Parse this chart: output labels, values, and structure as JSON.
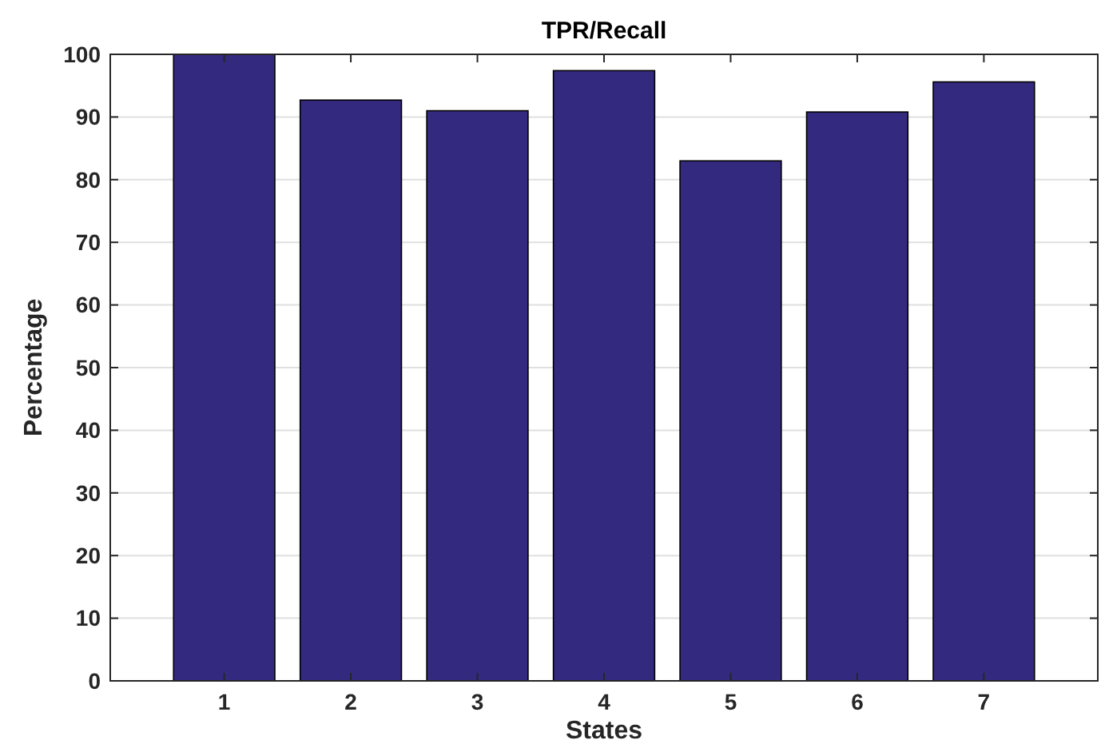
{
  "chart_data": {
    "type": "bar",
    "title": "TPR/Recall",
    "xlabel": "States",
    "ylabel": "Percentage",
    "categories": [
      "1",
      "2",
      "3",
      "4",
      "5",
      "6",
      "7"
    ],
    "values": [
      100,
      92.7,
      91,
      97.4,
      83,
      90.8,
      95.6
    ],
    "color": "#33297f",
    "ylim": [
      0,
      100
    ],
    "yticks": [
      0,
      10,
      20,
      30,
      40,
      50,
      60,
      70,
      80,
      90,
      100
    ],
    "grid": "y"
  }
}
